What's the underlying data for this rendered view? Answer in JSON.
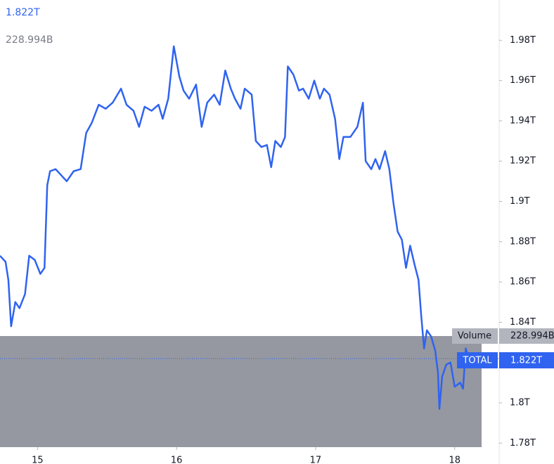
{
  "chart_data": {
    "type": "line",
    "price_label": "1.822T",
    "volume_label": "Volume",
    "volume_value": "228.994B",
    "x": [
      14.73,
      14.77,
      14.79,
      14.81,
      14.84,
      14.87,
      14.91,
      14.94,
      14.98,
      15.02,
      15.05,
      15.07,
      15.09,
      15.13,
      15.17,
      15.21,
      15.26,
      15.31,
      15.35,
      15.39,
      15.44,
      15.49,
      15.54,
      15.6,
      15.64,
      15.69,
      15.73,
      15.77,
      15.82,
      15.87,
      15.9,
      15.94,
      15.98,
      16.02,
      16.05,
      16.09,
      16.14,
      16.18,
      16.22,
      16.27,
      16.31,
      16.35,
      16.39,
      16.42,
      16.46,
      16.49,
      16.54,
      16.57,
      16.61,
      16.65,
      16.68,
      16.71,
      16.75,
      16.78,
      16.8,
      16.84,
      16.88,
      16.91,
      16.95,
      16.99,
      17.03,
      17.06,
      17.1,
      17.14,
      17.17,
      17.2,
      17.25,
      17.3,
      17.34,
      17.36,
      17.4,
      17.43,
      17.46,
      17.5,
      17.53,
      17.56,
      17.59,
      17.62,
      17.65,
      17.68,
      17.71,
      17.74,
      17.76,
      17.78,
      17.8,
      17.83,
      17.86,
      17.88,
      17.89,
      17.91,
      17.94,
      17.97,
      18.0,
      18.04,
      18.06,
      18.08,
      18.1
    ],
    "series": [
      {
        "name": "TOTAL",
        "color": "#2f63f0",
        "values": [
          1.873,
          1.87,
          1.861,
          1.838,
          1.85,
          1.847,
          1.854,
          1.873,
          1.871,
          1.864,
          1.867,
          1.908,
          1.915,
          1.916,
          1.913,
          1.91,
          1.915,
          1.916,
          1.934,
          1.939,
          1.948,
          1.946,
          1.949,
          1.956,
          1.948,
          1.945,
          1.937,
          1.947,
          1.945,
          1.948,
          1.941,
          1.951,
          1.977,
          1.962,
          1.955,
          1.951,
          1.958,
          1.937,
          1.949,
          1.953,
          1.948,
          1.965,
          1.956,
          1.951,
          1.946,
          1.956,
          1.953,
          1.93,
          1.927,
          1.928,
          1.917,
          1.93,
          1.927,
          1.932,
          1.967,
          1.963,
          1.955,
          1.956,
          1.951,
          1.96,
          1.951,
          1.956,
          1.953,
          1.941,
          1.921,
          1.932,
          1.932,
          1.937,
          1.949,
          1.92,
          1.916,
          1.921,
          1.916,
          1.925,
          1.916,
          1.899,
          1.885,
          1.881,
          1.867,
          1.878,
          1.869,
          1.861,
          1.843,
          1.827,
          1.836,
          1.833,
          1.826,
          1.815,
          1.797,
          1.813,
          1.819,
          1.82,
          1.808,
          1.81,
          1.807,
          1.827,
          1.822
        ]
      }
    ],
    "xlim": [
      14.73,
      18.32
    ],
    "xticks": [
      15,
      16,
      17,
      18
    ],
    "ylim": [
      1.778,
      2.0
    ],
    "yticks": [
      {
        "value": 1.98,
        "label": "1.98T"
      },
      {
        "value": 1.96,
        "label": "1.96T"
      },
      {
        "value": 1.94,
        "label": "1.94T"
      },
      {
        "value": 1.92,
        "label": "1.92T"
      },
      {
        "value": 1.9,
        "label": "1.9T"
      },
      {
        "value": 1.88,
        "label": "1.88T"
      },
      {
        "value": 1.86,
        "label": "1.86T"
      },
      {
        "value": 1.84,
        "label": "1.84T"
      },
      {
        "value": 1.8,
        "label": "1.8T"
      },
      {
        "value": 1.78,
        "label": "1.78T"
      }
    ]
  }
}
